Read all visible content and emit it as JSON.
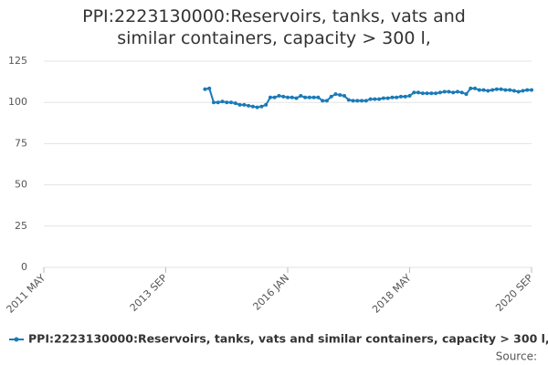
{
  "chart_data": {
    "type": "line",
    "title": "PPI:2223130000:Reservoirs, tanks, vats and similar containers, capacity > 300 l,",
    "source": "Source:",
    "x": [
      "2014-06",
      "2014-07",
      "2014-08",
      "2014-09",
      "2014-10",
      "2014-11",
      "2014-12",
      "2015-01",
      "2015-02",
      "2015-03",
      "2015-04",
      "2015-05",
      "2015-06",
      "2015-07",
      "2015-08",
      "2015-09",
      "2015-10",
      "2015-11",
      "2015-12",
      "2016-01",
      "2016-02",
      "2016-03",
      "2016-04",
      "2016-05",
      "2016-06",
      "2016-07",
      "2016-08",
      "2016-09",
      "2016-10",
      "2016-11",
      "2016-12",
      "2017-01",
      "2017-02",
      "2017-03",
      "2017-04",
      "2017-05",
      "2017-06",
      "2017-07",
      "2017-08",
      "2017-09",
      "2017-10",
      "2017-11",
      "2017-12",
      "2018-01",
      "2018-02",
      "2018-03",
      "2018-04",
      "2018-05",
      "2018-06",
      "2018-07",
      "2018-08",
      "2018-09",
      "2018-10",
      "2018-11",
      "2018-12",
      "2019-01",
      "2019-02",
      "2019-03",
      "2019-04",
      "2019-05",
      "2019-06",
      "2019-07",
      "2019-08",
      "2019-09",
      "2019-10",
      "2019-11",
      "2019-12",
      "2020-01",
      "2020-02",
      "2020-03",
      "2020-04",
      "2020-05",
      "2020-06",
      "2020-07",
      "2020-08",
      "2020-09"
    ],
    "series": [
      {
        "name": "PPI:2223130000:Reservoirs, tanks, vats and similar containers, capacity > 300 l,",
        "color": "#1a7ab8",
        "values": [
          108,
          108.5,
          100,
          100,
          100.5,
          100,
          100,
          99.5,
          98.5,
          98.5,
          98,
          97.5,
          97,
          97.5,
          98.5,
          103,
          103,
          104,
          103.5,
          103,
          103,
          102.5,
          104,
          103,
          103,
          103,
          103,
          101,
          101,
          103.5,
          105,
          104.5,
          104,
          101.5,
          101,
          101,
          101,
          101,
          102,
          102,
          102,
          102.5,
          102.5,
          103,
          103,
          103.5,
          103.5,
          104,
          106,
          106,
          105.5,
          105.5,
          105.5,
          105.5,
          106,
          106.5,
          106.5,
          106,
          106.5,
          106,
          105,
          108.5,
          108.5,
          107.5,
          107.5,
          107,
          107.5,
          108,
          108,
          107.5,
          107.5,
          107,
          106.5,
          107,
          107.5,
          107.5
        ]
      }
    ],
    "xlim": [
      "2011-05",
      "2020-09"
    ],
    "xticks": [
      {
        "value": "2011-05",
        "label": "2011 MAY"
      },
      {
        "value": "2013-09",
        "label": "2013 SEP"
      },
      {
        "value": "2016-01",
        "label": "2016 JAN"
      },
      {
        "value": "2018-05",
        "label": "2018 MAY"
      },
      {
        "value": "2020-09",
        "label": "2020 SEP"
      }
    ],
    "ylim": [
      0,
      125
    ],
    "yticks": [
      0,
      25,
      50,
      75,
      100,
      125
    ],
    "grid": true
  }
}
